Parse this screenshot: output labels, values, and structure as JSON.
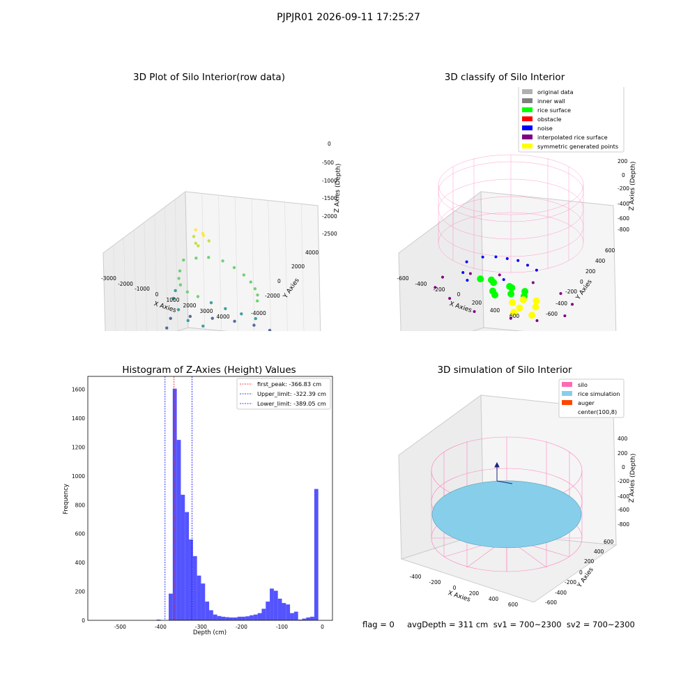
{
  "suptitle": "PJPJR01 2026-09-11 17:25:27",
  "status_text": "flag = 0     avgDepth = 311 cm  sv1 = 700~2300  sv2 = 700~2300",
  "colors": {
    "wire": "#ff69b4",
    "rice_sim": "#87ceeb",
    "auger": "#ff4500",
    "rice_surface": "#00ff00",
    "noise": "#0000ff",
    "interp": "#800080",
    "symmetric": "#ffff00",
    "hist_bar": "#4b4bff"
  },
  "chart_data": [
    {
      "type": "scatter",
      "title": "3D Plot of Silo Interior(row data)",
      "xlabel": "X Axies",
      "ylabel": "Y Axies",
      "zlabel": "Z Axies (Depth)",
      "x_ticks": [
        "-3000",
        "-2000",
        "-1000",
        "0",
        "1000",
        "2000",
        "3000",
        "4000"
      ],
      "y_ticks": [
        "-4000",
        "-2000",
        "0",
        "2000",
        "4000"
      ],
      "z_ticks": [
        "0",
        "-500",
        "-1000",
        "-1500",
        "-2000",
        "-2500"
      ],
      "xlim": [
        -3000,
        4500
      ],
      "ylim": [
        -4500,
        4500
      ],
      "zlim": [
        -2800,
        0
      ],
      "series": [
        {
          "values": [
            [
              -300,
              100,
              -200
            ],
            [
              0,
              300,
              -250
            ],
            [
              200,
              0,
              -250
            ],
            [
              -200,
              -300,
              -300
            ],
            [
              400,
              200,
              -350
            ],
            [
              100,
              -400,
              -450
            ],
            [
              -400,
              300,
              -500
            ],
            [
              -1400,
              900,
              -1000
            ],
            [
              -1000,
              1500,
              -950
            ],
            [
              -500,
              1900,
              -900
            ],
            [
              200,
              2100,
              -900
            ],
            [
              900,
              2000,
              -950
            ],
            [
              1600,
              1700,
              -1000
            ],
            [
              2200,
              1300,
              -1050
            ],
            [
              2700,
              800,
              -1100
            ],
            [
              3100,
              300,
              -1150
            ],
            [
              3400,
              -300,
              -1200
            ],
            [
              -1400,
              500,
              -1200
            ],
            [
              -1200,
              0,
              -1300
            ],
            [
              -800,
              -600,
              -1350
            ],
            [
              -200,
              -1000,
              -1400
            ],
            [
              500,
              -1200,
              -1400
            ],
            [
              1200,
              -1100,
              -1450
            ],
            [
              1900,
              -900,
              -1500
            ],
            [
              2600,
              -500,
              -1550
            ],
            [
              3200,
              -100,
              -1600
            ],
            [
              -1500,
              200,
              -1600
            ],
            [
              -1300,
              -400,
              -1700
            ],
            [
              -600,
              -1200,
              -1800
            ],
            [
              200,
              -1700,
              -1900
            ],
            [
              1100,
              -1800,
              -1900
            ],
            [
              1900,
              -1500,
              -2000
            ],
            [
              2700,
              -1000,
              -2100
            ],
            [
              3300,
              -300,
              -2200
            ],
            [
              -2600,
              1800,
              -2400
            ],
            [
              -2300,
              800,
              -2500
            ],
            [
              -1800,
              -200,
              -2550
            ],
            [
              -1000,
              -1100,
              -2600
            ],
            [
              -100,
              -1900,
              -2650
            ],
            [
              900,
              -2400,
              -2650
            ],
            [
              2000,
              -2300,
              -2600
            ],
            [
              3000,
              -1700,
              -2550
            ],
            [
              3700,
              -800,
              -2500
            ],
            [
              -1800,
              2400,
              -2300
            ],
            [
              -800,
              2900,
              -2250
            ],
            [
              300,
              3200,
              -2200
            ],
            [
              1400,
              3200,
              -2150
            ],
            [
              2500,
              2800,
              -2100
            ],
            [
              3500,
              2000,
              -2100
            ]
          ]
        }
      ]
    },
    {
      "type": "scatter",
      "title": "3D classify of Silo Interior",
      "xlabel": "X Axies",
      "ylabel": "Y Axies",
      "zlabel": "Z Axies (Depth)",
      "x_ticks": [
        "-600",
        "-400",
        "-200",
        "0",
        "200",
        "400",
        "600"
      ],
      "y_ticks": [
        "-600",
        "-400",
        "-200",
        "0",
        "200",
        "400",
        "600"
      ],
      "z_ticks": [
        "200",
        "0",
        "-200",
        "-400",
        "-600",
        "-800"
      ],
      "xlim": [
        -600,
        700
      ],
      "ylim": [
        -700,
        700
      ],
      "zlim": [
        -900,
        300
      ],
      "legend": [
        "original data",
        "inner wall",
        "rice surface",
        "obstacle",
        "noise",
        "interpolated rice surface",
        "symmetric generated points"
      ],
      "legend_colors": [
        "#b0b0b0",
        "#808080",
        "#00ff00",
        "#ff0000",
        "#0000ff",
        "#800080",
        "#ffff00"
      ],
      "legend_loc": "upper right",
      "series": [
        {
          "name": "rice surface",
          "values": [
            [
              -100,
              0,
              -300
            ],
            [
              0,
              100,
              -320
            ],
            [
              100,
              -50,
              -330
            ],
            [
              -50,
              -100,
              -340
            ],
            [
              50,
              50,
              -310
            ],
            [
              -150,
              50,
              -300
            ],
            [
              150,
              100,
              -320
            ],
            [
              0,
              -150,
              -350
            ],
            [
              -200,
              -50,
              -290
            ],
            [
              200,
              0,
              -330
            ]
          ]
        },
        {
          "name": "noise",
          "values": [
            [
              -450,
              150,
              -250
            ],
            [
              -350,
              250,
              -200
            ],
            [
              -250,
              300,
              -180
            ],
            [
              -150,
              320,
              -170
            ],
            [
              -50,
              330,
              -160
            ],
            [
              50,
              320,
              -170
            ],
            [
              150,
              300,
              -180
            ],
            [
              -400,
              0,
              -300
            ],
            [
              -300,
              -100,
              -320
            ],
            [
              0,
              0,
              -250
            ]
          ]
        },
        {
          "name": "interpolated rice surface",
          "values": [
            [
              -500,
              -300,
              -400
            ],
            [
              -300,
              -400,
              -420
            ],
            [
              0,
              -500,
              -430
            ],
            [
              300,
              -400,
              -420
            ],
            [
              500,
              -300,
              -400
            ],
            [
              600,
              0,
              -380
            ],
            [
              500,
              300,
              -360
            ],
            [
              300,
              450,
              -350
            ],
            [
              0,
              500,
              -350
            ],
            [
              -300,
              450,
              -360
            ],
            [
              -500,
              300,
              -380
            ],
            [
              -600,
              0,
              -390
            ]
          ]
        },
        {
          "name": "symmetric generated points",
          "values": [
            [
              200,
              -200,
              -350
            ],
            [
              300,
              -250,
              -360
            ],
            [
              400,
              -150,
              -340
            ],
            [
              250,
              -100,
              -330
            ],
            [
              350,
              -50,
              -320
            ],
            [
              450,
              -300,
              -370
            ],
            [
              300,
              -350,
              -380
            ]
          ]
        }
      ]
    },
    {
      "type": "bar",
      "title": "Histogram of Z-Axies (Height) Values",
      "xlabel": "Depth (cm)",
      "ylabel": "Frequency",
      "xlim": [
        -580,
        25
      ],
      "ylim": [
        0,
        1690
      ],
      "x_ticks": [
        "-500",
        "-400",
        "-300",
        "-200",
        "-100",
        "0"
      ],
      "y_ticks": [
        "0",
        "200",
        "400",
        "600",
        "800",
        "1000",
        "1200",
        "1400",
        "1600"
      ],
      "legend": [
        "first_peak: -366.83 cm",
        "Upper_limit: -322.39 cm",
        "Lower_limit: -389.05 cm"
      ],
      "legend_loc": "upper right",
      "bin_width": 10,
      "bins": [
        [
          -410,
          -400,
          5
        ],
        [
          -380,
          -370,
          185
        ],
        [
          -370,
          -360,
          1605
        ],
        [
          -360,
          -350,
          1250
        ],
        [
          -350,
          -340,
          870
        ],
        [
          -340,
          -330,
          750
        ],
        [
          -330,
          -320,
          560
        ],
        [
          -320,
          -310,
          445
        ],
        [
          -310,
          -300,
          310
        ],
        [
          -300,
          -290,
          255
        ],
        [
          -290,
          -280,
          130
        ],
        [
          -280,
          -270,
          70
        ],
        [
          -270,
          -260,
          40
        ],
        [
          -260,
          -250,
          30
        ],
        [
          -250,
          -240,
          25
        ],
        [
          -240,
          -230,
          22
        ],
        [
          -230,
          -220,
          20
        ],
        [
          -220,
          -210,
          20
        ],
        [
          -210,
          -200,
          25
        ],
        [
          -200,
          -190,
          25
        ],
        [
          -190,
          -180,
          28
        ],
        [
          -180,
          -170,
          35
        ],
        [
          -170,
          -160,
          40
        ],
        [
          -160,
          -150,
          50
        ],
        [
          -150,
          -140,
          80
        ],
        [
          -140,
          -130,
          130
        ],
        [
          -130,
          -120,
          220
        ],
        [
          -120,
          -110,
          205
        ],
        [
          -110,
          -100,
          150
        ],
        [
          -100,
          -90,
          120
        ],
        [
          -90,
          -80,
          110
        ],
        [
          -80,
          -70,
          50
        ],
        [
          -70,
          -60,
          60
        ],
        [
          -60,
          -50,
          5
        ],
        [
          -50,
          -40,
          12
        ],
        [
          -40,
          -30,
          20
        ],
        [
          -30,
          -20,
          25
        ],
        [
          -20,
          -10,
          910
        ]
      ],
      "vlines": [
        {
          "label": "first_peak: -366.83 cm",
          "x": -366.83,
          "color": "#ff0000"
        },
        {
          "label": "Upper_limit: -322.39 cm",
          "x": -322.39,
          "color": "#0000ff"
        },
        {
          "label": "Lower_limit: -389.05 cm",
          "x": -389.05,
          "color": "#0000ff"
        }
      ]
    },
    {
      "type": "scatter",
      "title": "3D simulation of Silo Interior",
      "xlabel": "X Axies",
      "ylabel": "Y Axies",
      "zlabel": "Z Axies (Depth)",
      "x_ticks": [
        "-400",
        "-200",
        "0",
        "200",
        "400",
        "600"
      ],
      "y_ticks": [
        "-600",
        "-400",
        "-200",
        "0",
        "200",
        "400",
        "600"
      ],
      "z_ticks": [
        "400",
        "200",
        "0",
        "-200",
        "-400",
        "-600",
        "-800"
      ],
      "xlim": [
        -500,
        700
      ],
      "ylim": [
        -700,
        700
      ],
      "zlim": [
        -900,
        500
      ],
      "legend": [
        "silo",
        "rice simulation",
        "auger",
        "center(100,8)"
      ],
      "legend_colors": [
        "#ff69b4",
        "#87ceeb",
        "#ff4500",
        "#ffffff"
      ],
      "legend_loc": "upper right",
      "avg_depth": -311,
      "center": [
        100,
        8
      ]
    }
  ]
}
